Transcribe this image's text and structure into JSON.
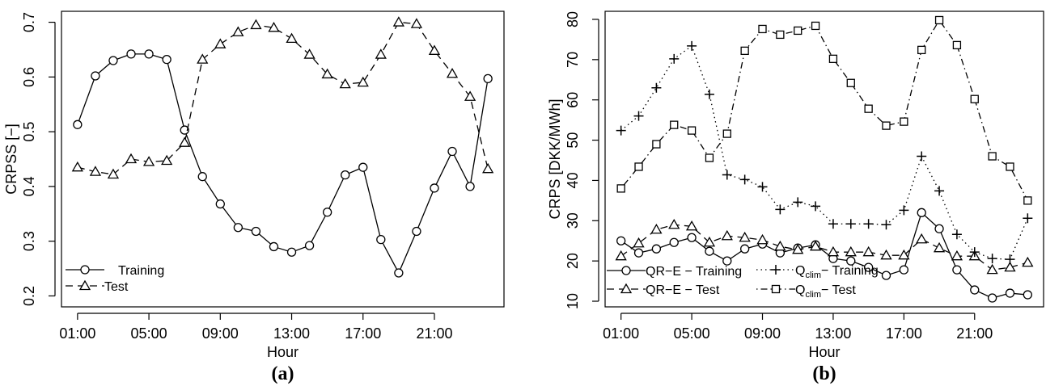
{
  "chart_data": [
    {
      "type": "line",
      "panel_label": "(a)",
      "panel_letter": "a",
      "xlabel": "Hour",
      "ylabel": "CRPSS [−]",
      "x": [
        1,
        2,
        3,
        4,
        5,
        6,
        7,
        8,
        9,
        10,
        11,
        12,
        13,
        14,
        15,
        16,
        17,
        18,
        19,
        20,
        21,
        22,
        23,
        24
      ],
      "xlim": [
        0.1,
        24.9
      ],
      "ylim": [
        0.18,
        0.72
      ],
      "xticks": [
        1,
        5,
        9,
        13,
        17,
        21
      ],
      "xtick_labels": [
        "01:00",
        "05:00",
        "09:00",
        "13:00",
        "17:00",
        "21:00"
      ],
      "yticks": [
        0.2,
        0.3,
        0.4,
        0.5,
        0.6,
        0.7
      ],
      "ytick_labels": [
        "0.2",
        "0.3",
        "0.4",
        "0.5",
        "0.6",
        "0.7"
      ],
      "series": [
        {
          "name": "Training",
          "marker": "circle",
          "line": "solid",
          "values": [
            0.513,
            0.602,
            0.63,
            0.642,
            0.642,
            0.632,
            0.503,
            0.418,
            0.368,
            0.325,
            0.318,
            0.29,
            0.28,
            0.292,
            0.353,
            0.421,
            0.435,
            0.303,
            0.242,
            0.318,
            0.397,
            0.464,
            0.4,
            0.597
          ]
        },
        {
          "name": "Test",
          "marker": "triangle",
          "line": "dashed",
          "values": [
            0.435,
            0.427,
            0.422,
            0.45,
            0.445,
            0.447,
            0.48,
            0.632,
            0.66,
            0.682,
            0.695,
            0.69,
            0.67,
            0.641,
            0.605,
            0.587,
            0.59,
            0.641,
            0.7,
            0.697,
            0.648,
            0.606,
            0.564,
            0.432
          ]
        }
      ],
      "legend_position": "bottom-left"
    },
    {
      "type": "line",
      "panel_label": "(b)",
      "panel_letter": "b",
      "xlabel": "Hour",
      "ylabel": "CRPS [DKK/MWh]",
      "x": [
        1,
        2,
        3,
        4,
        5,
        6,
        7,
        8,
        9,
        10,
        11,
        12,
        13,
        14,
        15,
        16,
        17,
        18,
        19,
        20,
        21,
        22,
        23,
        24
      ],
      "xlim": [
        0.1,
        24.9
      ],
      "ylim": [
        8.6,
        82
      ],
      "xticks": [
        1,
        5,
        9,
        13,
        17,
        21
      ],
      "xtick_labels": [
        "01:00",
        "05:00",
        "09:00",
        "13:00",
        "17:00",
        "21:00"
      ],
      "yticks": [
        10,
        20,
        30,
        40,
        50,
        60,
        70,
        80
      ],
      "ytick_labels": [
        "10",
        "20",
        "30",
        "40",
        "50",
        "60",
        "70",
        "80"
      ],
      "series": [
        {
          "name": "QR−E − Training",
          "marker": "circle",
          "line": "solid",
          "values": [
            25.0,
            22.0,
            23.0,
            24.6,
            25.8,
            22.4,
            20.0,
            23.0,
            24.2,
            22.0,
            23.2,
            24.0,
            20.6,
            20.0,
            18.4,
            16.4,
            17.8,
            32.0,
            28.0,
            17.8,
            12.8,
            10.8,
            12.0,
            11.6
          ]
        },
        {
          "name": "QR−E − Test",
          "marker": "triangle",
          "line": "dashed",
          "values": [
            21.2,
            24.4,
            27.8,
            29.0,
            28.6,
            24.6,
            26.2,
            25.8,
            25.2,
            23.6,
            22.8,
            23.6,
            22.2,
            22.2,
            22.2,
            21.4,
            21.4,
            25.4,
            23.2,
            21.2,
            21.2,
            17.8,
            18.4,
            19.6
          ]
        },
        {
          "name_main": "Q",
          "name_sub": "clim",
          "name_suffix": "− Training",
          "marker": "plus",
          "line": "dotted",
          "values": [
            52.4,
            56.0,
            63.0,
            70.2,
            73.4,
            61.4,
            41.4,
            40.2,
            38.4,
            32.8,
            34.6,
            33.6,
            29.2,
            29.2,
            29.2,
            29.0,
            32.6,
            46.0,
            37.4,
            26.6,
            22.2,
            20.6,
            20.4,
            30.6
          ]
        },
        {
          "name_main": "Q",
          "name_sub": "clim",
          "name_suffix": "− Test",
          "marker": "square",
          "line": "dashdot",
          "values": [
            38.0,
            43.4,
            49.0,
            53.8,
            52.4,
            45.6,
            51.6,
            72.2,
            77.6,
            76.2,
            77.2,
            78.4,
            70.2,
            64.2,
            57.8,
            53.6,
            54.6,
            72.4,
            79.8,
            73.6,
            60.2,
            46.0,
            43.4,
            35.0
          ]
        }
      ],
      "legend_position": "bottom"
    }
  ]
}
